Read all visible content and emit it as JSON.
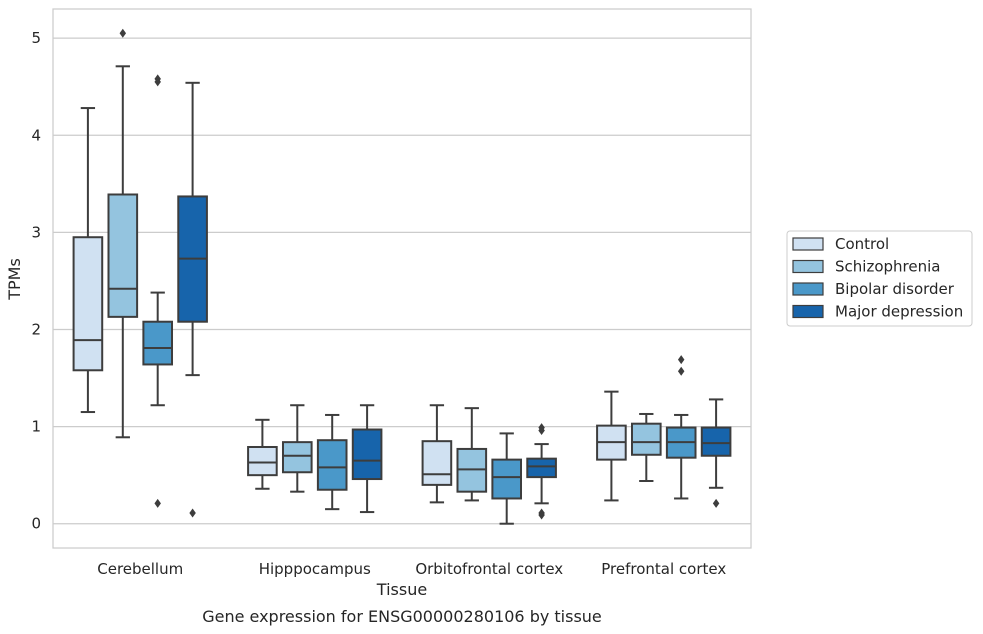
{
  "chart_data": {
    "type": "box",
    "xlabel": "Tissue",
    "ylabel": "TPMs",
    "caption": "Gene expression for ENSG00000280106 by tissue",
    "ylim": [
      -0.25,
      5.3
    ],
    "yticks": [
      0,
      1,
      2,
      3,
      4,
      5
    ],
    "grid": "horizontal",
    "legend_position": "right",
    "categories": [
      "Cerebellum",
      "Hipppocampus",
      "Orbitofrontal cortex",
      "Prefrontal cortex"
    ],
    "series": [
      {
        "name": "Control",
        "color": "#d0e1f2",
        "boxes": [
          {
            "whislo": 1.15,
            "q1": 1.58,
            "med": 1.89,
            "q3": 2.95,
            "whishi": 4.28,
            "fliers": []
          },
          {
            "whislo": 0.36,
            "q1": 0.5,
            "med": 0.63,
            "q3": 0.79,
            "whishi": 1.07,
            "fliers": []
          },
          {
            "whislo": 0.22,
            "q1": 0.4,
            "med": 0.51,
            "q3": 0.85,
            "whishi": 1.22,
            "fliers": []
          },
          {
            "whislo": 0.24,
            "q1": 0.66,
            "med": 0.84,
            "q3": 1.01,
            "whishi": 1.36,
            "fliers": []
          }
        ]
      },
      {
        "name": "Schizophrenia",
        "color": "#94c4df",
        "boxes": [
          {
            "whislo": 0.89,
            "q1": 2.13,
            "med": 2.42,
            "q3": 3.39,
            "whishi": 4.71,
            "fliers": [
              5.05
            ]
          },
          {
            "whislo": 0.33,
            "q1": 0.53,
            "med": 0.7,
            "q3": 0.84,
            "whishi": 1.22,
            "fliers": []
          },
          {
            "whislo": 0.24,
            "q1": 0.33,
            "med": 0.56,
            "q3": 0.77,
            "whishi": 1.19,
            "fliers": []
          },
          {
            "whislo": 0.44,
            "q1": 0.71,
            "med": 0.84,
            "q3": 1.03,
            "whishi": 1.13,
            "fliers": []
          }
        ]
      },
      {
        "name": "Bipolar disorder",
        "color": "#4a98c9",
        "boxes": [
          {
            "whislo": 1.22,
            "q1": 1.64,
            "med": 1.81,
            "q3": 2.08,
            "whishi": 2.38,
            "fliers": [
              4.55,
              4.58,
              0.21
            ]
          },
          {
            "whislo": 0.15,
            "q1": 0.35,
            "med": 0.58,
            "q3": 0.86,
            "whishi": 1.12,
            "fliers": []
          },
          {
            "whislo": 0.0,
            "q1": 0.26,
            "med": 0.48,
            "q3": 0.66,
            "whishi": 0.93,
            "fliers": []
          },
          {
            "whislo": 0.26,
            "q1": 0.68,
            "med": 0.84,
            "q3": 0.99,
            "whishi": 1.12,
            "fliers": [
              1.57,
              1.69
            ]
          }
        ]
      },
      {
        "name": "Major depression",
        "color": "#1764ab",
        "boxes": [
          {
            "whislo": 1.53,
            "q1": 2.08,
            "med": 2.73,
            "q3": 3.37,
            "whishi": 4.54,
            "fliers": [
              0.11
            ]
          },
          {
            "whislo": 0.12,
            "q1": 0.46,
            "med": 0.65,
            "q3": 0.97,
            "whishi": 1.22,
            "fliers": []
          },
          {
            "whislo": 0.21,
            "q1": 0.48,
            "med": 0.59,
            "q3": 0.67,
            "whishi": 0.82,
            "fliers": [
              0.96,
              0.99,
              0.11,
              0.09
            ]
          },
          {
            "whislo": 0.37,
            "q1": 0.7,
            "med": 0.83,
            "q3": 0.99,
            "whishi": 1.28,
            "fliers": [
              0.21
            ]
          }
        ]
      }
    ]
  }
}
